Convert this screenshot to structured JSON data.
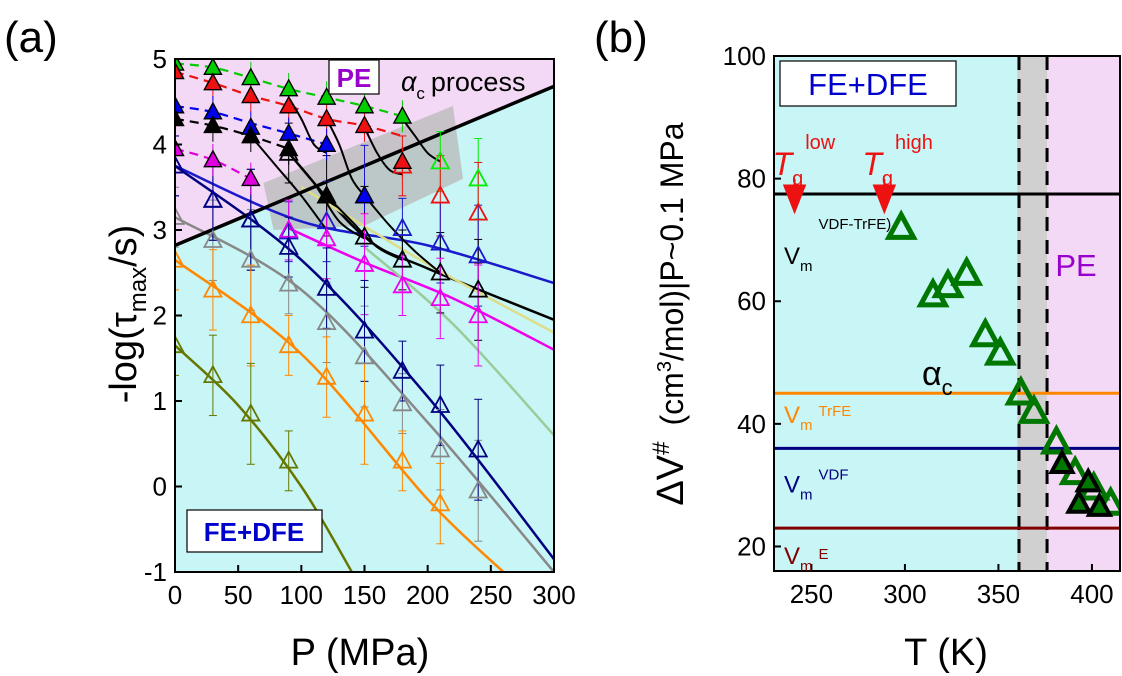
{
  "chart_data": [
    {
      "type": "scatter",
      "panel_label": "(a)",
      "xlabel": "P (MPa)",
      "ylabel_parts": [
        "-log(τ",
        "max",
        "/s)"
      ],
      "xlim": [
        0,
        300
      ],
      "ylim": [
        -1,
        5
      ],
      "xticks": [
        0,
        50,
        100,
        150,
        200,
        250,
        300
      ],
      "yticks": [
        -1,
        0,
        1,
        2,
        3,
        4,
        5
      ],
      "region_labels": {
        "pe": "PE",
        "fe_dfe": "FE+DFE",
        "process": "process",
        "process_symbol": "α",
        "process_sub": "c"
      },
      "colors": {
        "pe_region": "#f3d9f5",
        "fe_region": "#c8f5f5",
        "shaded_band": "#b8b8b8",
        "boundary": "#000000",
        "pe_label": "#9900cc",
        "fe_label": "#0000cc"
      },
      "boundary_line": {
        "x": [
          0,
          300
        ],
        "y": [
          2.82,
          4.68
        ]
      },
      "dashed_series": [
        {
          "color": "#00cc00",
          "x": [
            0,
            30,
            60,
            90,
            120,
            150,
            180
          ],
          "y": [
            4.95,
            4.9,
            4.78,
            4.65,
            4.55,
            4.45,
            4.33
          ]
        },
        {
          "color": "#ee1111",
          "x": [
            0,
            30,
            60,
            90,
            120,
            150,
            180
          ],
          "y": [
            4.85,
            4.72,
            4.57,
            4.45,
            4.3,
            4.22,
            4.1
          ]
        },
        {
          "color": "#0000ee",
          "x": [
            0,
            30,
            60,
            90,
            120
          ],
          "y": [
            4.45,
            4.38,
            4.25,
            4.13,
            4.0
          ]
        },
        {
          "color": "#000000",
          "x": [
            0,
            30,
            60,
            90
          ],
          "y": [
            4.3,
            4.22,
            4.1,
            3.95
          ]
        },
        {
          "color": "#dd00dd",
          "x": [
            0,
            30,
            60
          ],
          "y": [
            3.95,
            3.82,
            3.6
          ]
        }
      ],
      "filled_points": [
        {
          "color": "#00cc00",
          "x": [
            0,
            30,
            60,
            90,
            120,
            150,
            180
          ],
          "y": [
            4.95,
            4.9,
            4.78,
            4.65,
            4.55,
            4.45,
            4.33
          ]
        },
        {
          "color": "#ee1111",
          "x": [
            0,
            30,
            60,
            90,
            120,
            150,
            180
          ],
          "y": [
            4.85,
            4.72,
            4.57,
            4.45,
            4.3,
            4.22,
            3.8
          ]
        },
        {
          "color": "#0000ee",
          "x": [
            0,
            30,
            60,
            90,
            120,
            150
          ],
          "y": [
            4.45,
            4.38,
            4.2,
            4.13,
            4.0,
            3.4
          ]
        },
        {
          "color": "#000000",
          "x": [
            0,
            30,
            60,
            90,
            120
          ],
          "y": [
            4.3,
            4.22,
            4.1,
            3.95,
            3.4
          ]
        },
        {
          "color": "#dd00dd",
          "x": [
            0,
            30,
            60
          ],
          "y": [
            3.95,
            3.82,
            3.6
          ]
        }
      ],
      "open_series": [
        {
          "color": "#00ee00",
          "x": [
            210,
            240
          ],
          "y": [
            3.8,
            3.6
          ]
        },
        {
          "color": "#ee1111",
          "x": [
            180,
            210,
            240
          ],
          "y": [
            3.75,
            3.4,
            3.2
          ]
        },
        {
          "color": "#1a1acc",
          "x": [
            0,
            30,
            60,
            90,
            120,
            150,
            180,
            210,
            240
          ],
          "y": [
            3.75,
            3.35,
            3.12,
            2.98,
            3.1,
            3.4,
            3.02,
            2.85,
            2.7
          ]
        },
        {
          "color": "#000000",
          "x": [
            90,
            120,
            150,
            180,
            210,
            240
          ],
          "y": [
            3.9,
            3.4,
            2.92,
            2.65,
            2.5,
            2.3
          ]
        },
        {
          "color": "#ee00ee",
          "x": [
            90,
            120,
            150,
            180,
            210,
            240
          ],
          "y": [
            3.0,
            2.9,
            2.6,
            2.35,
            2.2,
            2.0
          ]
        },
        {
          "color": "#888888",
          "x": [
            0,
            30,
            60,
            90,
            120,
            150,
            180,
            210,
            240
          ],
          "y": [
            3.15,
            2.88,
            2.65,
            2.37,
            1.92,
            1.52,
            0.97,
            0.43,
            -0.05
          ]
        },
        {
          "color": "#000080",
          "x": [
            0,
            30,
            60,
            90,
            120,
            150,
            180,
            210,
            240
          ],
          "y": [
            3.75,
            3.35,
            3.12,
            2.8,
            2.32,
            1.82,
            1.35,
            0.95,
            0.43
          ]
        },
        {
          "color": "#ff8800",
          "x": [
            0,
            30,
            60,
            90,
            120,
            150,
            180,
            210
          ],
          "y": [
            2.65,
            2.3,
            2.0,
            1.65,
            1.28,
            0.85,
            0.3,
            -0.2
          ]
        },
        {
          "color": "#667700",
          "x": [
            0,
            30,
            60,
            90
          ],
          "y": [
            1.65,
            1.3,
            0.85,
            0.3
          ]
        }
      ],
      "fit_curves": [
        {
          "color": "#1a1acc",
          "x": [
            0,
            100,
            200,
            300
          ],
          "y": [
            3.75,
            3.1,
            2.82,
            2.38
          ]
        },
        {
          "color": "#000000",
          "x": [
            90,
            150,
            200,
            300
          ],
          "y": [
            3.9,
            2.92,
            2.55,
            1.95
          ]
        },
        {
          "color": "#ee00ee",
          "x": [
            90,
            150,
            220,
            300
          ],
          "y": [
            3.02,
            2.62,
            2.2,
            1.6
          ]
        },
        {
          "color": "#888888",
          "x": [
            0,
            100,
            200,
            300
          ],
          "y": [
            3.15,
            2.3,
            0.75,
            -1.0
          ]
        },
        {
          "color": "#000080",
          "x": [
            0,
            100,
            200,
            300
          ],
          "y": [
            3.75,
            2.65,
            1.05,
            -0.85
          ]
        },
        {
          "color": "#ff8800",
          "x": [
            0,
            100,
            200,
            260
          ],
          "y": [
            2.65,
            1.55,
            -0.15,
            -1.0
          ]
        },
        {
          "color": "#667700",
          "x": [
            0,
            50,
            100,
            140
          ],
          "y": [
            1.65,
            0.95,
            0.0,
            -1.0
          ]
        },
        {
          "color": "#99cc99",
          "x": [
            150,
            220,
            300
          ],
          "y": [
            2.8,
            1.9,
            0.6
          ]
        },
        {
          "color": "#dddd88",
          "x": [
            100,
            200,
            300
          ],
          "y": [
            3.5,
            2.6,
            1.8
          ]
        }
      ],
      "transition_curves": [
        {
          "x": [
            90,
            100,
            110,
            120
          ],
          "y": [
            4.55,
            4.3,
            4.0,
            3.9
          ]
        },
        {
          "x": [
            120,
            130,
            140,
            150
          ],
          "y": [
            4.3,
            4.0,
            3.6,
            3.4
          ]
        },
        {
          "x": [
            150,
            160,
            170,
            180
          ],
          "y": [
            4.2,
            3.9,
            3.7,
            3.65
          ]
        },
        {
          "x": [
            180,
            190,
            200,
            210
          ],
          "y": [
            4.3,
            4.1,
            3.9,
            3.8
          ]
        },
        {
          "x": [
            60,
            80,
            100,
            120
          ],
          "y": [
            4.1,
            3.75,
            3.4,
            3.0
          ]
        },
        {
          "x": [
            90,
            110,
            130,
            150
          ],
          "y": [
            3.9,
            3.55,
            3.1,
            2.9
          ]
        },
        {
          "x": [
            120,
            140,
            160,
            180
          ],
          "y": [
            3.4,
            3.1,
            2.8,
            2.65
          ]
        },
        {
          "x": [
            150,
            170,
            190,
            210
          ],
          "y": [
            3.4,
            3.05,
            2.75,
            2.5
          ]
        }
      ]
    },
    {
      "type": "scatter",
      "panel_label": "(b)",
      "xlabel": "T (K)",
      "ylabel_parts": [
        "ΔV",
        "#",
        "(cm",
        "3",
        "/mol)|P~0.1 MPa"
      ],
      "xlim": [
        230,
        415
      ],
      "ylim": [
        16,
        100
      ],
      "xticks": [
        250,
        300,
        350,
        400
      ],
      "yticks": [
        20,
        40,
        60,
        80,
        100
      ],
      "region_labels": {
        "fe_dfe": "FE+DFE",
        "pe": "PE",
        "alpha": "α",
        "alpha_sub": "c"
      },
      "colors": {
        "fe_region": "#c8f5f5",
        "pe_region": "#f3d9f5",
        "band": "#d0d0d0",
        "points_green": "#007700",
        "points_black": "#000000",
        "tg": "#ee1111",
        "pe_label": "#9900cc",
        "fe_label": "#0000cc"
      },
      "band": {
        "x": [
          360,
          376
        ]
      },
      "dashed_vertical": [
        361,
        376
      ],
      "hlines": [
        {
          "y": 77.5,
          "color": "#000000",
          "label": "V",
          "sub": "m",
          "sup": "VDF-TrFE)",
          "label_color": "#000000"
        },
        {
          "y": 45,
          "color": "#ff8800",
          "label": "V",
          "sub": "m",
          "sup": "TrFE",
          "label_color": "#ff8800"
        },
        {
          "y": 36,
          "color": "#000080",
          "label": "V",
          "sub": "m",
          "sup": "VDF",
          "label_color": "#000080"
        },
        {
          "y": 23,
          "color": "#800000",
          "label": "V",
          "sub": "m",
          "sup": "E",
          "label_color": "#800000"
        }
      ],
      "tg_markers": [
        {
          "x": 241,
          "y": 77,
          "label": "T",
          "sub": "g",
          "sup": "low"
        },
        {
          "x": 289,
          "y": 77,
          "label": "T",
          "sub": "g",
          "sup": "high"
        }
      ],
      "green_points": {
        "x": [
          298,
          315,
          323,
          333,
          343,
          351,
          362,
          369,
          381,
          391,
          401,
          410
        ],
        "y": [
          72,
          61,
          62.5,
          64.5,
          54.5,
          51.5,
          45,
          42,
          37,
          32,
          29.5,
          27
        ]
      },
      "black_points": {
        "x": [
          384,
          398,
          393,
          404
        ],
        "y": [
          33.5,
          30.5,
          27,
          26.5
        ]
      }
    }
  ]
}
